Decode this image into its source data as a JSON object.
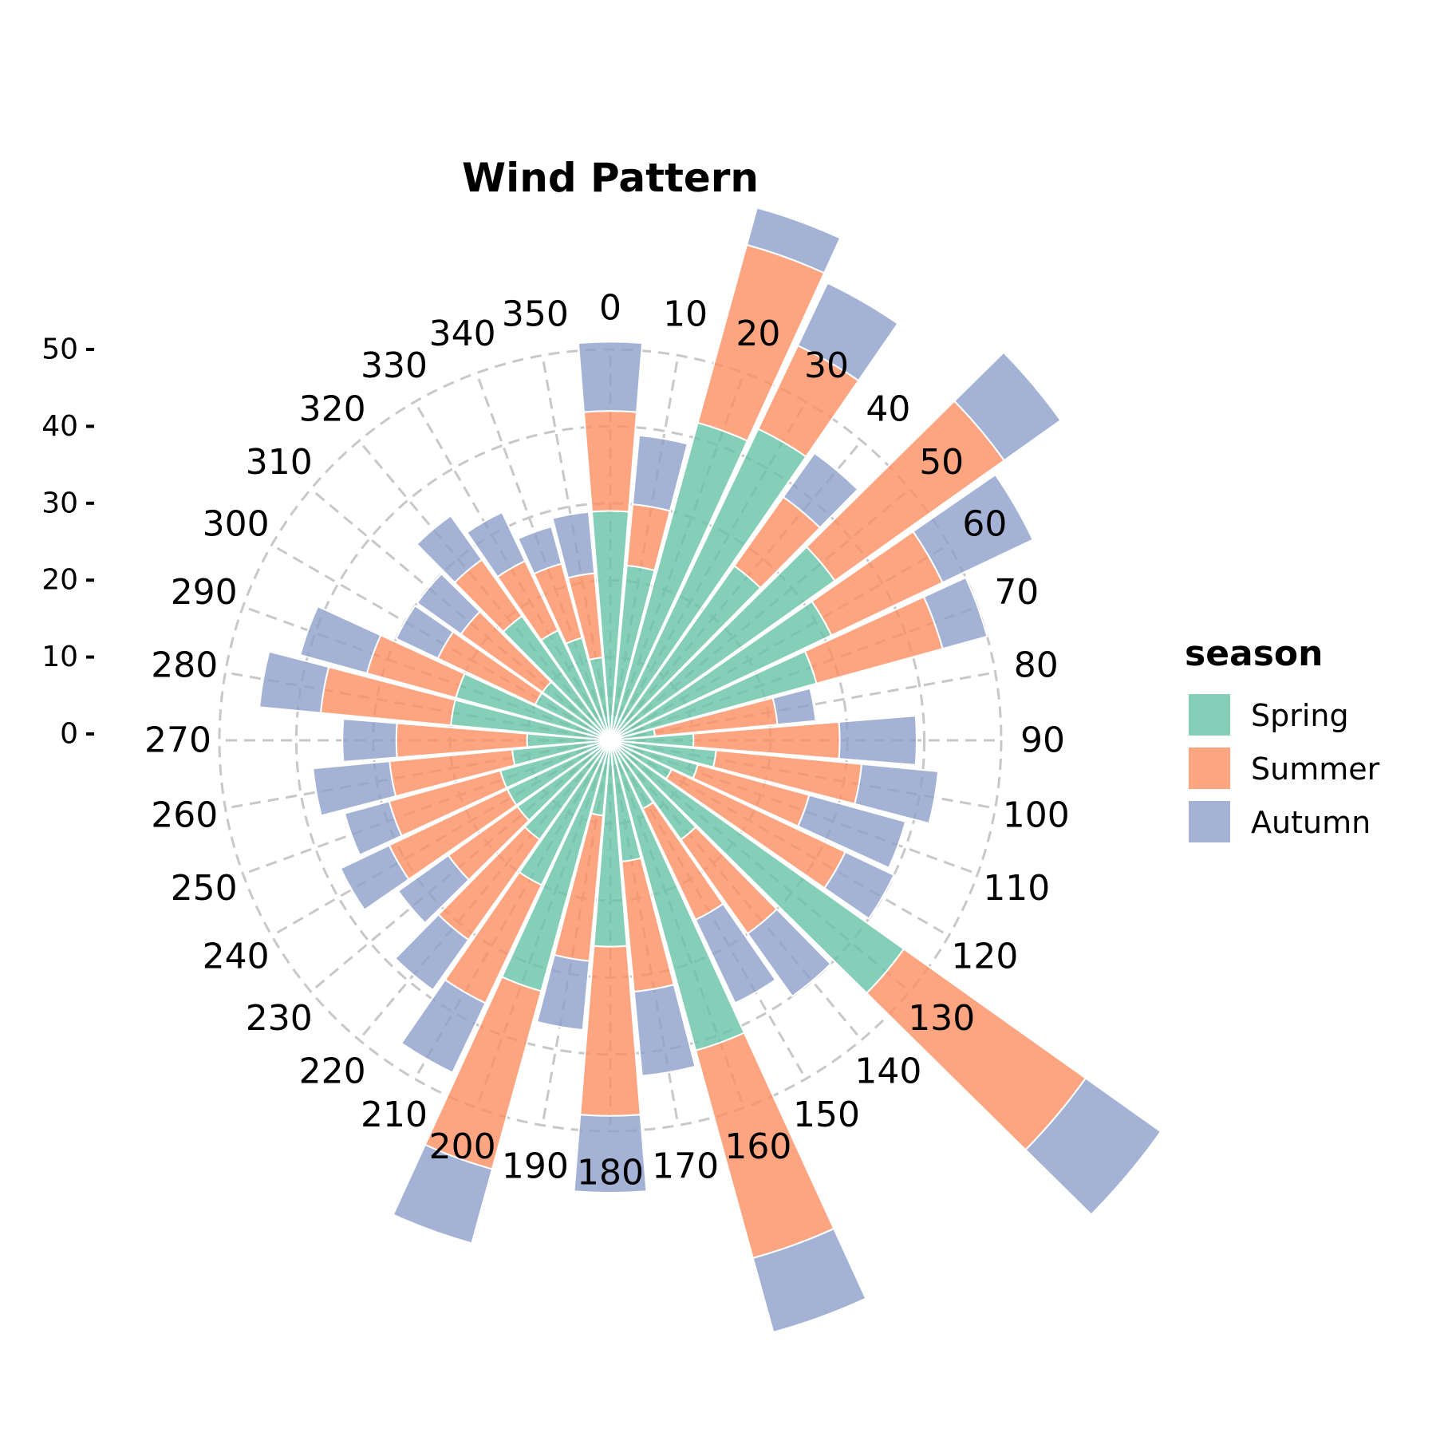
{
  "chart_data": {
    "type": "bar",
    "polar": true,
    "stacked": true,
    "title": "Wind Pattern",
    "direction_ticks": [
      "0",
      "10",
      "20",
      "30",
      "40",
      "50",
      "60",
      "70",
      "80",
      "90",
      "100",
      "110",
      "120",
      "130",
      "140",
      "150",
      "160",
      "170",
      "180",
      "190",
      "200",
      "210",
      "220",
      "230",
      "240",
      "250",
      "260",
      "270",
      "280",
      "290",
      "300",
      "310",
      "320",
      "330",
      "340",
      "350"
    ],
    "radial_ticks": [
      "0",
      "10",
      "20",
      "30",
      "40",
      "50"
    ],
    "rlim": [
      0,
      50
    ],
    "grid": true,
    "legend": {
      "title": "season",
      "position": "right"
    },
    "series": [
      {
        "name": "Spring",
        "color": "#66c2a5",
        "values": [
          29,
          22,
          42,
          44,
          27,
          35,
          31,
          27,
          5,
          10,
          13,
          11,
          8,
          46,
          15,
          9,
          41,
          15,
          26,
          9,
          33,
          20,
          15,
          14,
          14,
          14,
          12,
          10,
          20,
          20,
          10,
          10,
          19,
          15,
          13,
          10
        ]
      },
      {
        "name": "Summer",
        "color": "#fc8d62",
        "values": [
          13,
          8,
          24,
          12,
          11,
          27,
          16,
          17,
          16,
          19,
          19,
          15,
          25,
          29,
          15,
          16,
          28,
          17,
          22,
          19,
          24,
          17,
          16,
          11,
          17,
          15,
          16,
          17,
          17,
          12,
          14,
          13,
          9,
          10,
          10,
          11
        ]
      },
      {
        "name": "Autumn",
        "color": "#8da0cb",
        "values": [
          9,
          9,
          5,
          9,
          7,
          9,
          13,
          6,
          5,
          10,
          10,
          13,
          7,
          12,
          10,
          12,
          10,
          11,
          10,
          9,
          10,
          10,
          8,
          8,
          7,
          6,
          10,
          7,
          8,
          9,
          6,
          7,
          7,
          7,
          5,
          8
        ]
      }
    ]
  }
}
